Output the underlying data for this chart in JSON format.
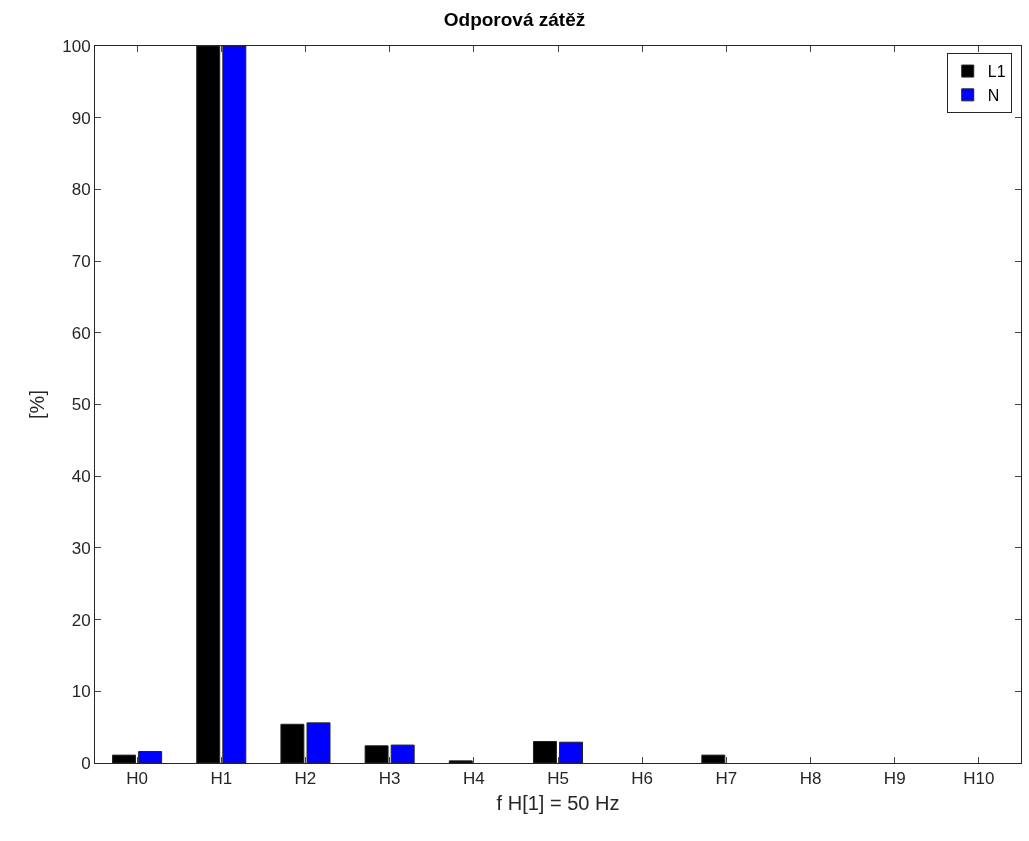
{
  "chart_data": {
    "type": "bar",
    "title": "Odporová zátěž",
    "xlabel": "f H[1] = 50 Hz",
    "ylabel": "[%]",
    "categories": [
      "H0",
      "H1",
      "H2",
      "H3",
      "H4",
      "H5",
      "H6",
      "H7",
      "H8",
      "H9",
      "H10"
    ],
    "series": [
      {
        "name": "L1",
        "color": "#000000",
        "values": [
          1.1,
          100,
          5.4,
          2.4,
          0.3,
          3.0,
          null,
          1.1,
          null,
          null,
          null
        ]
      },
      {
        "name": "N",
        "color": "#0000ff",
        "values": [
          1.6,
          100,
          5.6,
          2.5,
          null,
          2.9,
          null,
          null,
          null,
          null,
          null
        ]
      }
    ],
    "ylim": [
      0,
      100
    ],
    "yticks": [
      0,
      10,
      20,
      30,
      40,
      50,
      60,
      70,
      80,
      90,
      100
    ],
    "grid": false,
    "legend": "top right"
  }
}
